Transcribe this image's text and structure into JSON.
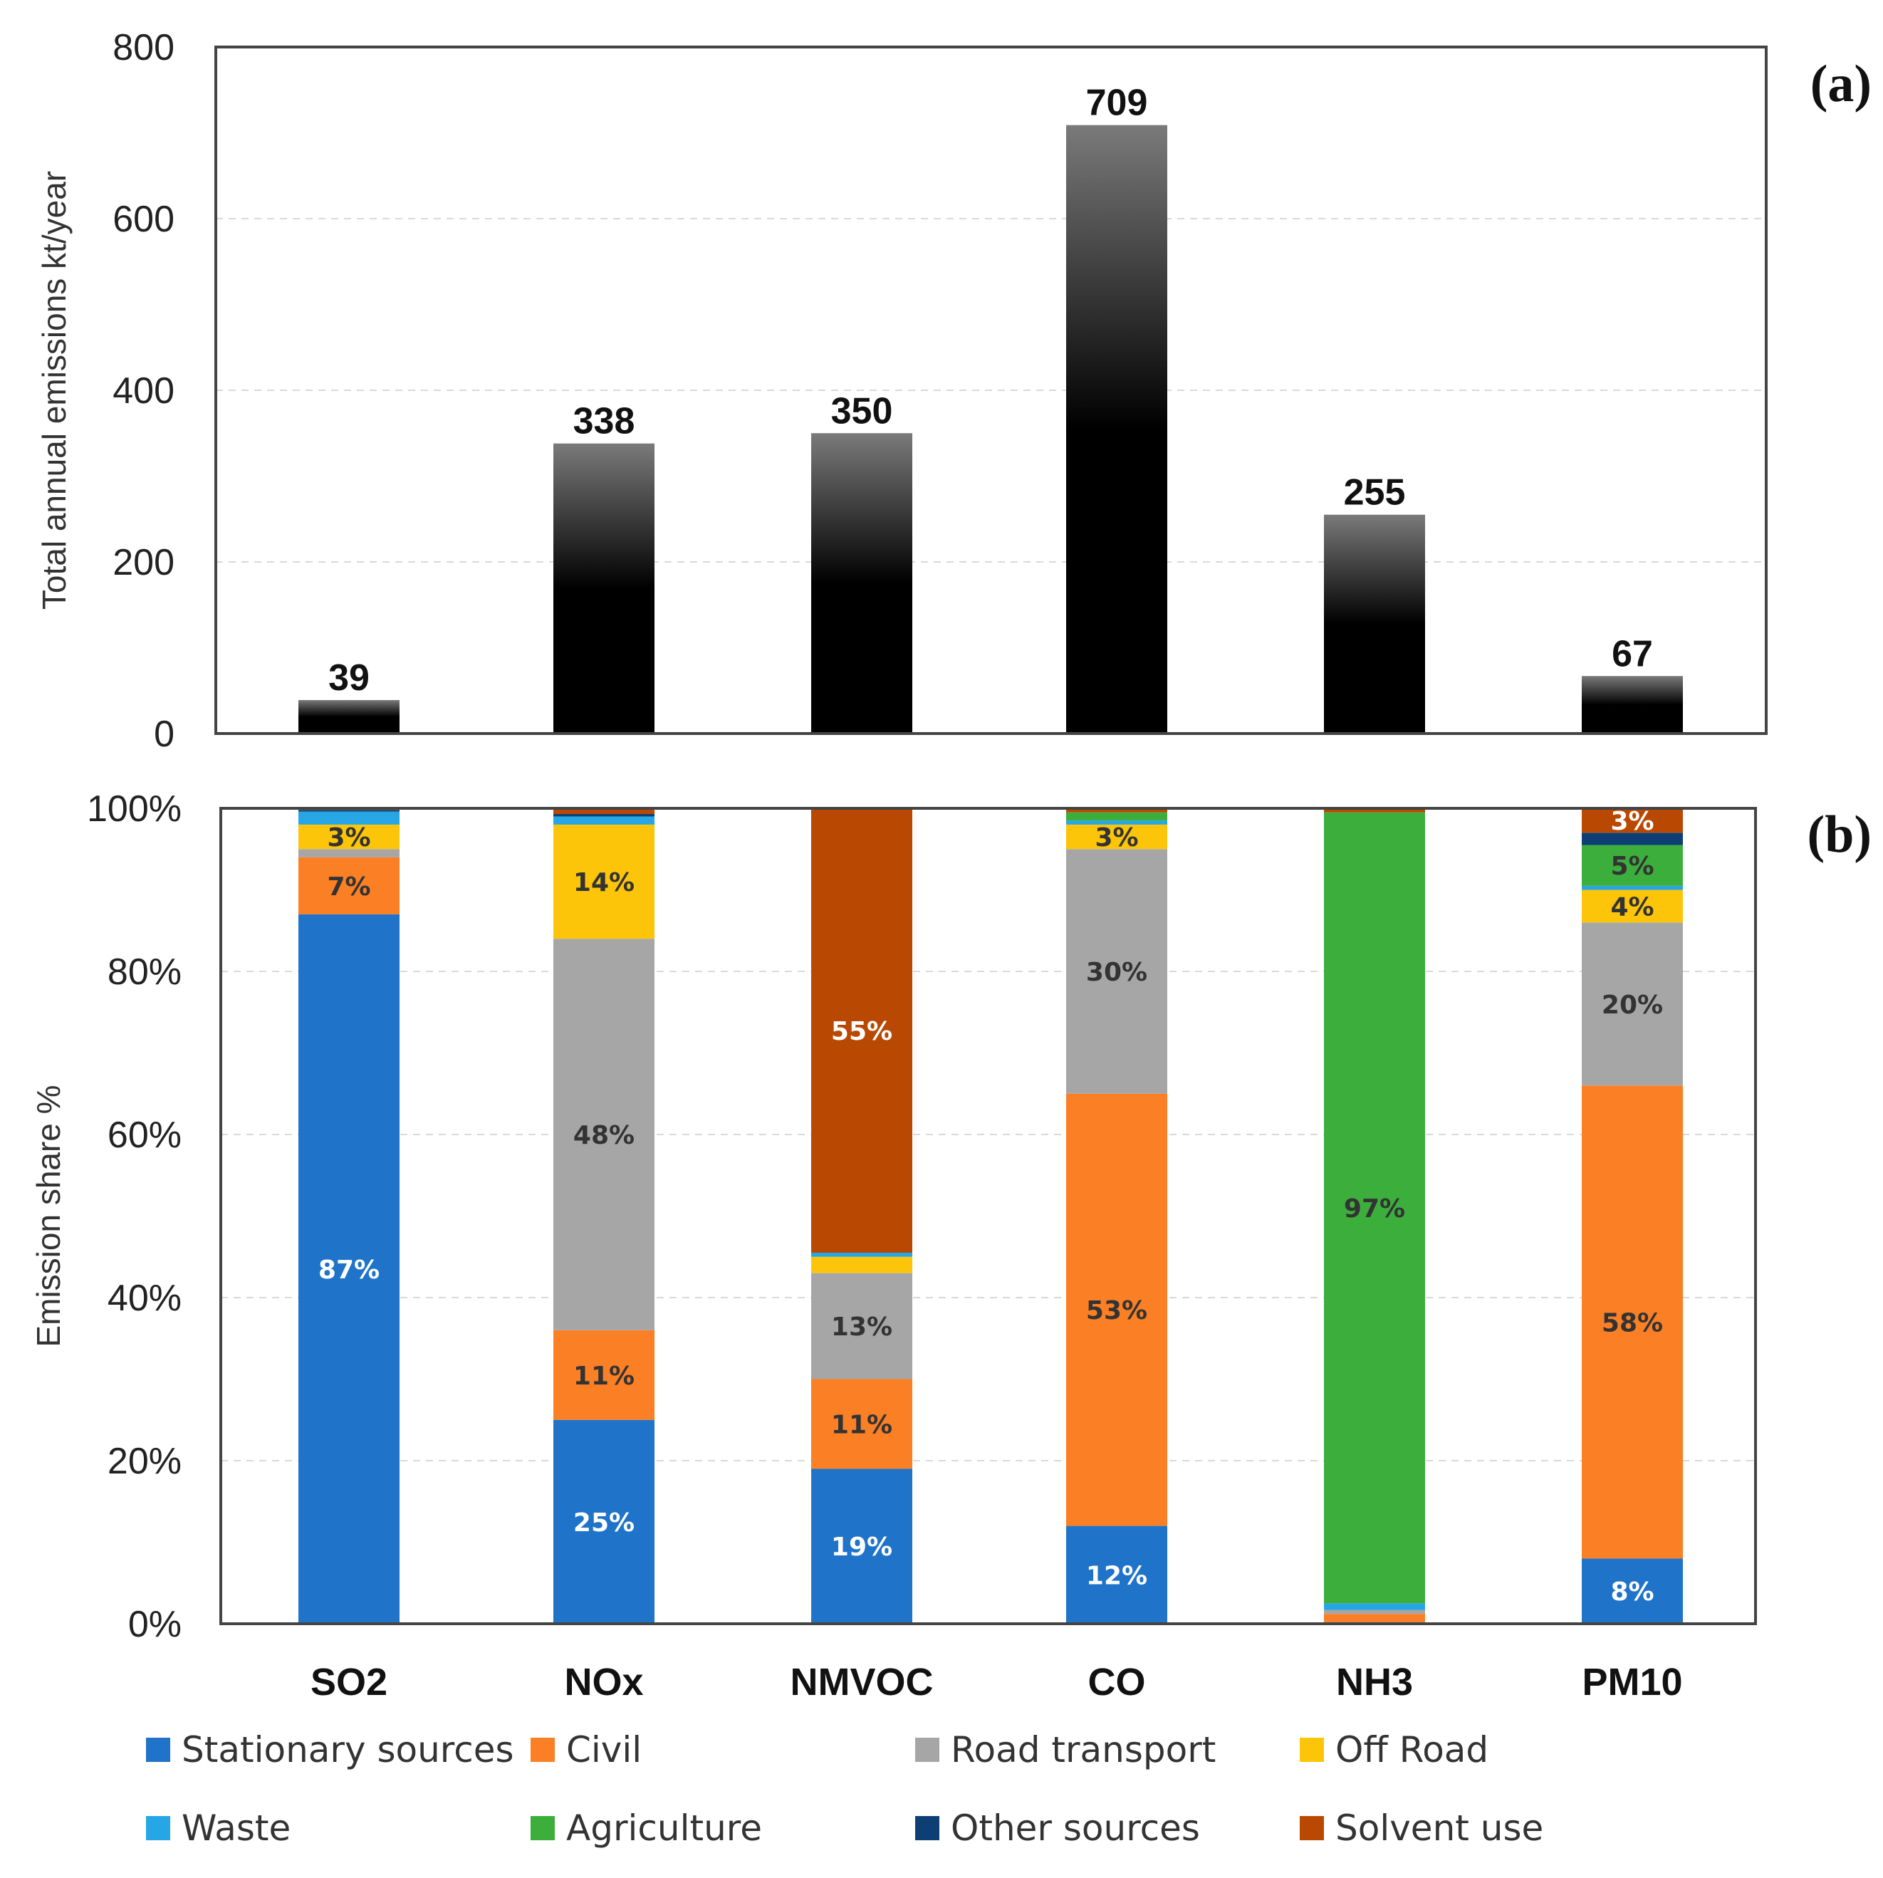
{
  "chart_data": [
    {
      "type": "bar",
      "panel": "(a)",
      "categories": [
        "SO2",
        "NOx",
        "NMVOC",
        "CO",
        "NH3",
        "PM10"
      ],
      "values": [
        39,
        338,
        350,
        709,
        255,
        67
      ],
      "value_labels": [
        "39",
        "338",
        "350",
        "709",
        "255",
        "67"
      ],
      "ylabel": "Total annual emissions kt/year",
      "ylim": [
        0,
        800
      ],
      "yticks": [
        "0",
        "200",
        "400",
        "600",
        "800"
      ],
      "ytick_values": [
        0,
        200,
        400,
        600,
        800
      ],
      "grid": true
    },
    {
      "type": "bar",
      "stacked": true,
      "panel": "(b)",
      "categories": [
        "SO2",
        "NOx",
        "NMVOC",
        "CO",
        "NH3",
        "PM10"
      ],
      "ylabel": "Emission share %",
      "ylim": [
        0,
        100
      ],
      "yticks": [
        "0%",
        "20%",
        "40%",
        "60%",
        "80%",
        "100%"
      ],
      "ytick_values": [
        0,
        20,
        40,
        60,
        80,
        100
      ],
      "grid": true,
      "series": [
        {
          "name": "Stationary sources",
          "color": "#1f73c9",
          "label_color": "#ffffff",
          "values": [
            87,
            25,
            19,
            12,
            0.2,
            8
          ],
          "labels": [
            "87%",
            "25%",
            "19%",
            "12%",
            "",
            "8%"
          ]
        },
        {
          "name": "Civil",
          "color": "#fb7f24",
          "label_color": "#333333",
          "values": [
            7,
            11,
            11,
            53,
            1.0,
            58
          ],
          "labels": [
            "7%",
            "11%",
            "11%",
            "53%",
            "",
            "58%"
          ]
        },
        {
          "name": "Road transport",
          "color": "#a6a6a6",
          "label_color": "#333333",
          "values": [
            1,
            48,
            13,
            30,
            0.5,
            20
          ],
          "labels": [
            "",
            "48%",
            "13%",
            "30%",
            "",
            "20%"
          ]
        },
        {
          "name": "Off Road",
          "color": "#fcc50a",
          "label_color": "#333333",
          "values": [
            3,
            14,
            2,
            3,
            0,
            4
          ],
          "labels": [
            "3%",
            "14%",
            "",
            "3%",
            "",
            "4%"
          ]
        },
        {
          "name": "Waste",
          "color": "#26a6e4",
          "label_color": "#333333",
          "values": [
            1.6,
            1,
            0.5,
            0.5,
            0.8,
            0.5
          ],
          "labels": [
            "",
            "",
            "",
            "",
            "",
            ""
          ]
        },
        {
          "name": "Agriculture",
          "color": "#3cae3c",
          "label_color": "#333333",
          "values": [
            0,
            0,
            0,
            1,
            97,
            5
          ],
          "labels": [
            "",
            "",
            "",
            "",
            "97%",
            "5%"
          ]
        },
        {
          "name": "Other sources",
          "color": "#0d3f74",
          "label_color": "#ffffff",
          "values": [
            0.2,
            0.3,
            0,
            0,
            0,
            1.5
          ],
          "labels": [
            "",
            "",
            "",
            "",
            "",
            ""
          ]
        },
        {
          "name": "Solvent use",
          "color": "#b94803",
          "label_color": "#ffffff",
          "values": [
            0.2,
            0.7,
            54.5,
            0.5,
            0.5,
            3
          ],
          "labels": [
            "",
            "",
            "55%",
            "",
            "",
            "3%"
          ]
        }
      ]
    }
  ]
}
